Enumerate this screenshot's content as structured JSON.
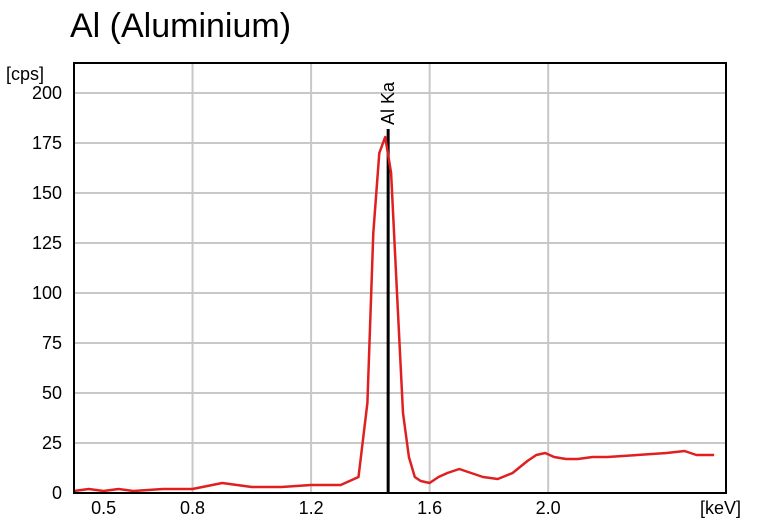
{
  "chart_data": {
    "type": "line",
    "title": "Al (Aluminium)",
    "ylabel": "[cps]",
    "xlabel": "[keV]",
    "xlim": [
      0.4,
      2.6
    ],
    "ylim": [
      0,
      215
    ],
    "grid": true,
    "x_ticks": [
      0.5,
      0.8,
      1.2,
      1.6,
      2.0
    ],
    "x_grid": [
      0.4,
      0.8,
      1.2,
      1.6,
      2.0
    ],
    "y_ticks": [
      0,
      25,
      50,
      75,
      100,
      125,
      150,
      175,
      200
    ],
    "series_color": "#e02020",
    "series": [
      {
        "x": [
          0.4,
          0.45,
          0.5,
          0.55,
          0.6,
          0.7,
          0.8,
          0.9,
          0.95,
          1.0,
          1.1,
          1.2,
          1.3,
          1.36,
          1.39,
          1.41,
          1.43,
          1.45,
          1.47,
          1.49,
          1.51,
          1.53,
          1.55,
          1.57,
          1.6,
          1.63,
          1.66,
          1.7,
          1.74,
          1.78,
          1.83,
          1.88,
          1.93,
          1.96,
          1.99,
          2.02,
          2.06,
          2.1,
          2.15,
          2.2,
          2.3,
          2.4,
          2.46,
          2.5,
          2.56
        ],
        "y": [
          1,
          2,
          1,
          2,
          1,
          2,
          2,
          5,
          4,
          3,
          3,
          4,
          4,
          8,
          45,
          130,
          170,
          178,
          160,
          100,
          40,
          18,
          8,
          6,
          5,
          8,
          10,
          12,
          10,
          8,
          7,
          10,
          16,
          19,
          20,
          18,
          17,
          17,
          18,
          18,
          19,
          20,
          21,
          19,
          19
        ]
      }
    ],
    "annotations": [
      {
        "label": "Al Ka",
        "x": 1.46,
        "y": 181
      }
    ]
  }
}
